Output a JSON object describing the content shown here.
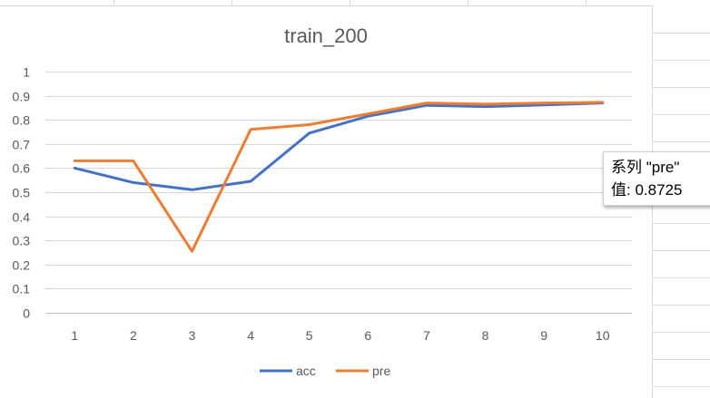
{
  "chart_data": {
    "type": "line",
    "title": "train_200",
    "xlabel": "",
    "ylabel": "",
    "categories": [
      "1",
      "2",
      "3",
      "4",
      "5",
      "6",
      "7",
      "8",
      "9",
      "10"
    ],
    "y_ticks": [
      "0",
      "0.1",
      "0.2",
      "0.3",
      "0.4",
      "0.5",
      "0.6",
      "0.7",
      "0.8",
      "0.9",
      "1"
    ],
    "ylim": [
      0,
      1
    ],
    "grid": true,
    "legend_position": "bottom",
    "series": [
      {
        "name": "acc",
        "color": "#4472C4",
        "values": [
          0.6,
          0.54,
          0.51,
          0.545,
          0.745,
          0.815,
          0.86,
          0.855,
          0.862,
          0.87
        ]
      },
      {
        "name": "pre",
        "color": "#ED7D31",
        "values": [
          0.63,
          0.63,
          0.255,
          0.76,
          0.78,
          0.825,
          0.87,
          0.865,
          0.87,
          0.8725
        ]
      }
    ]
  },
  "tooltip": {
    "series_line": "系列 \"pre\"",
    "value_line": "值: 0.8725"
  }
}
